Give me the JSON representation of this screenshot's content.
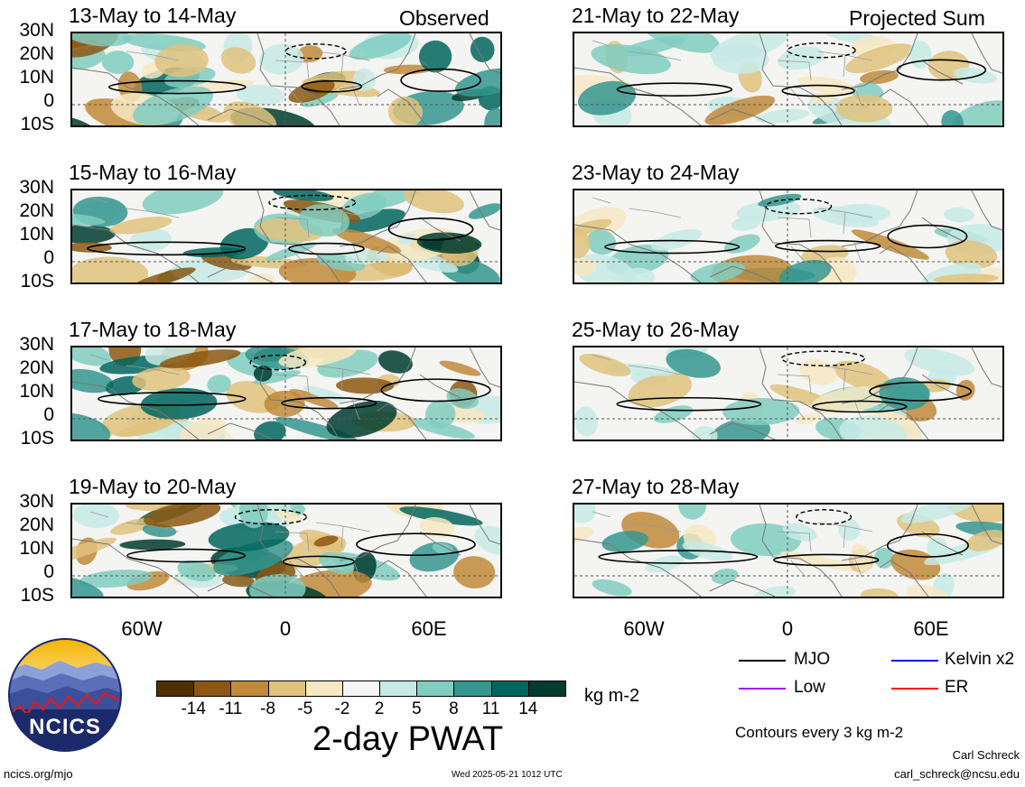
{
  "panels": [
    {
      "title": "13-May to 14-May",
      "tag": "Observed"
    },
    {
      "title": "21-May to 22-May",
      "tag": "Projected Sum"
    },
    {
      "title": "15-May to 16-May",
      "tag": ""
    },
    {
      "title": "23-May to 24-May",
      "tag": ""
    },
    {
      "title": "17-May to 18-May",
      "tag": ""
    },
    {
      "title": "25-May to 26-May",
      "tag": ""
    },
    {
      "title": "19-May to 20-May",
      "tag": ""
    },
    {
      "title": "27-May to 28-May",
      "tag": ""
    }
  ],
  "lat_labels": [
    "30N",
    "20N",
    "10N",
    "0",
    "10S"
  ],
  "lon_labels": [
    "60W",
    "0",
    "60E"
  ],
  "colorbar": {
    "ticks": [
      "-14",
      "-11",
      "-8",
      "-5",
      "-2",
      "2",
      "5",
      "8",
      "11",
      "14"
    ],
    "colors": [
      "#4f3004",
      "#8c5711",
      "#c08a3a",
      "#dfc27d",
      "#f6e8c3",
      "#f5f5f5",
      "#c7eae5",
      "#80cdc1",
      "#35978f",
      "#01665e",
      "#003c30"
    ],
    "units": "kg m-2",
    "title": "2-day PWAT"
  },
  "legend": {
    "mjo": {
      "label": "MJO",
      "color": "#000000"
    },
    "kelvin": {
      "label": "Kelvin x2",
      "color": "#0000ff"
    },
    "low": {
      "label": "Low",
      "color": "#a020f0"
    },
    "er": {
      "label": "ER",
      "color": "#ff0000"
    },
    "contour_note": "Contours every 3 kg m-2"
  },
  "logo": {
    "text": "NCICS"
  },
  "footer": {
    "url": "ncics.org/mjo",
    "timestamp": "Wed 2025-05-21 1012 UTC",
    "author": "Carl Schreck",
    "email": "carl_schreck@ncsu.edu"
  }
}
